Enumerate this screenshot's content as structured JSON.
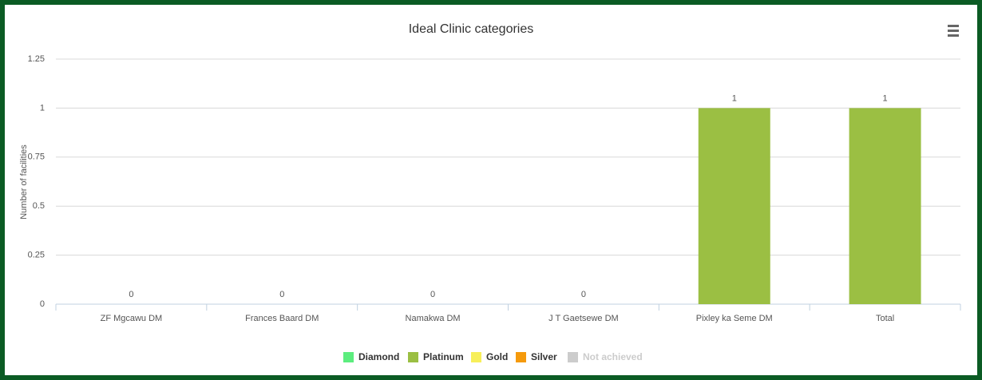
{
  "chart_data": {
    "type": "bar",
    "title": "Ideal Clinic categories",
    "y_label": "Number of facilities",
    "categories": [
      "ZF Mgcawu DM",
      "Frances Baard DM",
      "Namakwa DM",
      "J T Gaetsewe DM",
      "Pixley ka Seme DM",
      "Total"
    ],
    "series": [
      {
        "name": "Diamond",
        "color": "#5ced7e"
      },
      {
        "name": "Platinum",
        "color": "#9bbf43",
        "values": [
          0,
          0,
          0,
          0,
          1,
          1
        ]
      },
      {
        "name": "Gold",
        "color": "#f7ef5a"
      },
      {
        "name": "Silver",
        "color": "#f59a0c"
      },
      {
        "name": "Not achieved",
        "color": "#cccccc",
        "hidden": true
      }
    ],
    "ylim": [
      0,
      1.25
    ],
    "yticks": [
      0,
      0.25,
      0.5,
      0.75,
      1,
      1.25
    ],
    "grid": true,
    "legend": "bottom"
  }
}
